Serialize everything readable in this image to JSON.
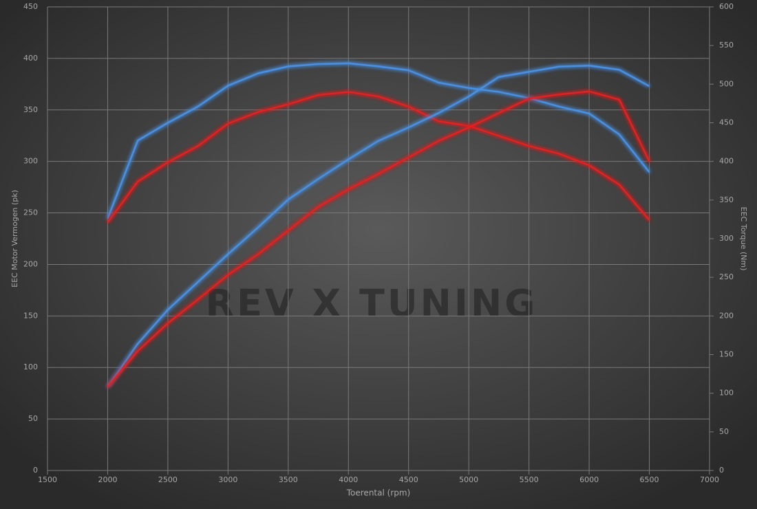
{
  "chart_data": {
    "type": "line",
    "watermark": "REV X TUNING",
    "xlabel": "Toerental (rpm)",
    "ylabel": "EEC Motor Vermogen (pk)",
    "y2label": "EEC Torque (Nm)",
    "x": [
      2000,
      2250,
      2500,
      2750,
      3000,
      3250,
      3500,
      3750,
      4000,
      4250,
      4500,
      4750,
      5000,
      5250,
      5500,
      5750,
      6000,
      6250,
      6500
    ],
    "xlim": [
      1500,
      7000
    ],
    "xticks": [
      1500,
      2000,
      2500,
      3000,
      3500,
      4000,
      4500,
      5000,
      5500,
      6000,
      6500,
      7000
    ],
    "ylim": [
      0,
      450
    ],
    "yticks": [
      0,
      50,
      100,
      150,
      200,
      250,
      300,
      350,
      400,
      450
    ],
    "y2lim": [
      0,
      600
    ],
    "y2ticks": [
      0,
      50,
      100,
      150,
      200,
      250,
      300,
      350,
      400,
      450,
      500,
      550,
      600
    ],
    "grid": true,
    "series": [
      {
        "color": "#4a90e2",
        "axis": "y2",
        "values": [
          326,
          427,
          450,
          471,
          498,
          514,
          523,
          526,
          527,
          523,
          518,
          502,
          495,
          490,
          482,
          471,
          462,
          435,
          386
        ]
      },
      {
        "color": "#e02424",
        "axis": "y2",
        "values": [
          321,
          374,
          399,
          420,
          449,
          464,
          474,
          486,
          490,
          484,
          471,
          452,
          446,
          433,
          420,
          410,
          395,
          370,
          324
        ]
      },
      {
        "color": "#4a90e2",
        "values": [
          81,
          123,
          156,
          183,
          210,
          236,
          263,
          283,
          302,
          320,
          333,
          347,
          363,
          382,
          387,
          392,
          393,
          389,
          373
        ]
      },
      {
        "color": "#e02424",
        "values": [
          81,
          116,
          143,
          166,
          190,
          210,
          233,
          256,
          273,
          288,
          304,
          320,
          333,
          347,
          361,
          365,
          368,
          360,
          300
        ]
      }
    ]
  }
}
